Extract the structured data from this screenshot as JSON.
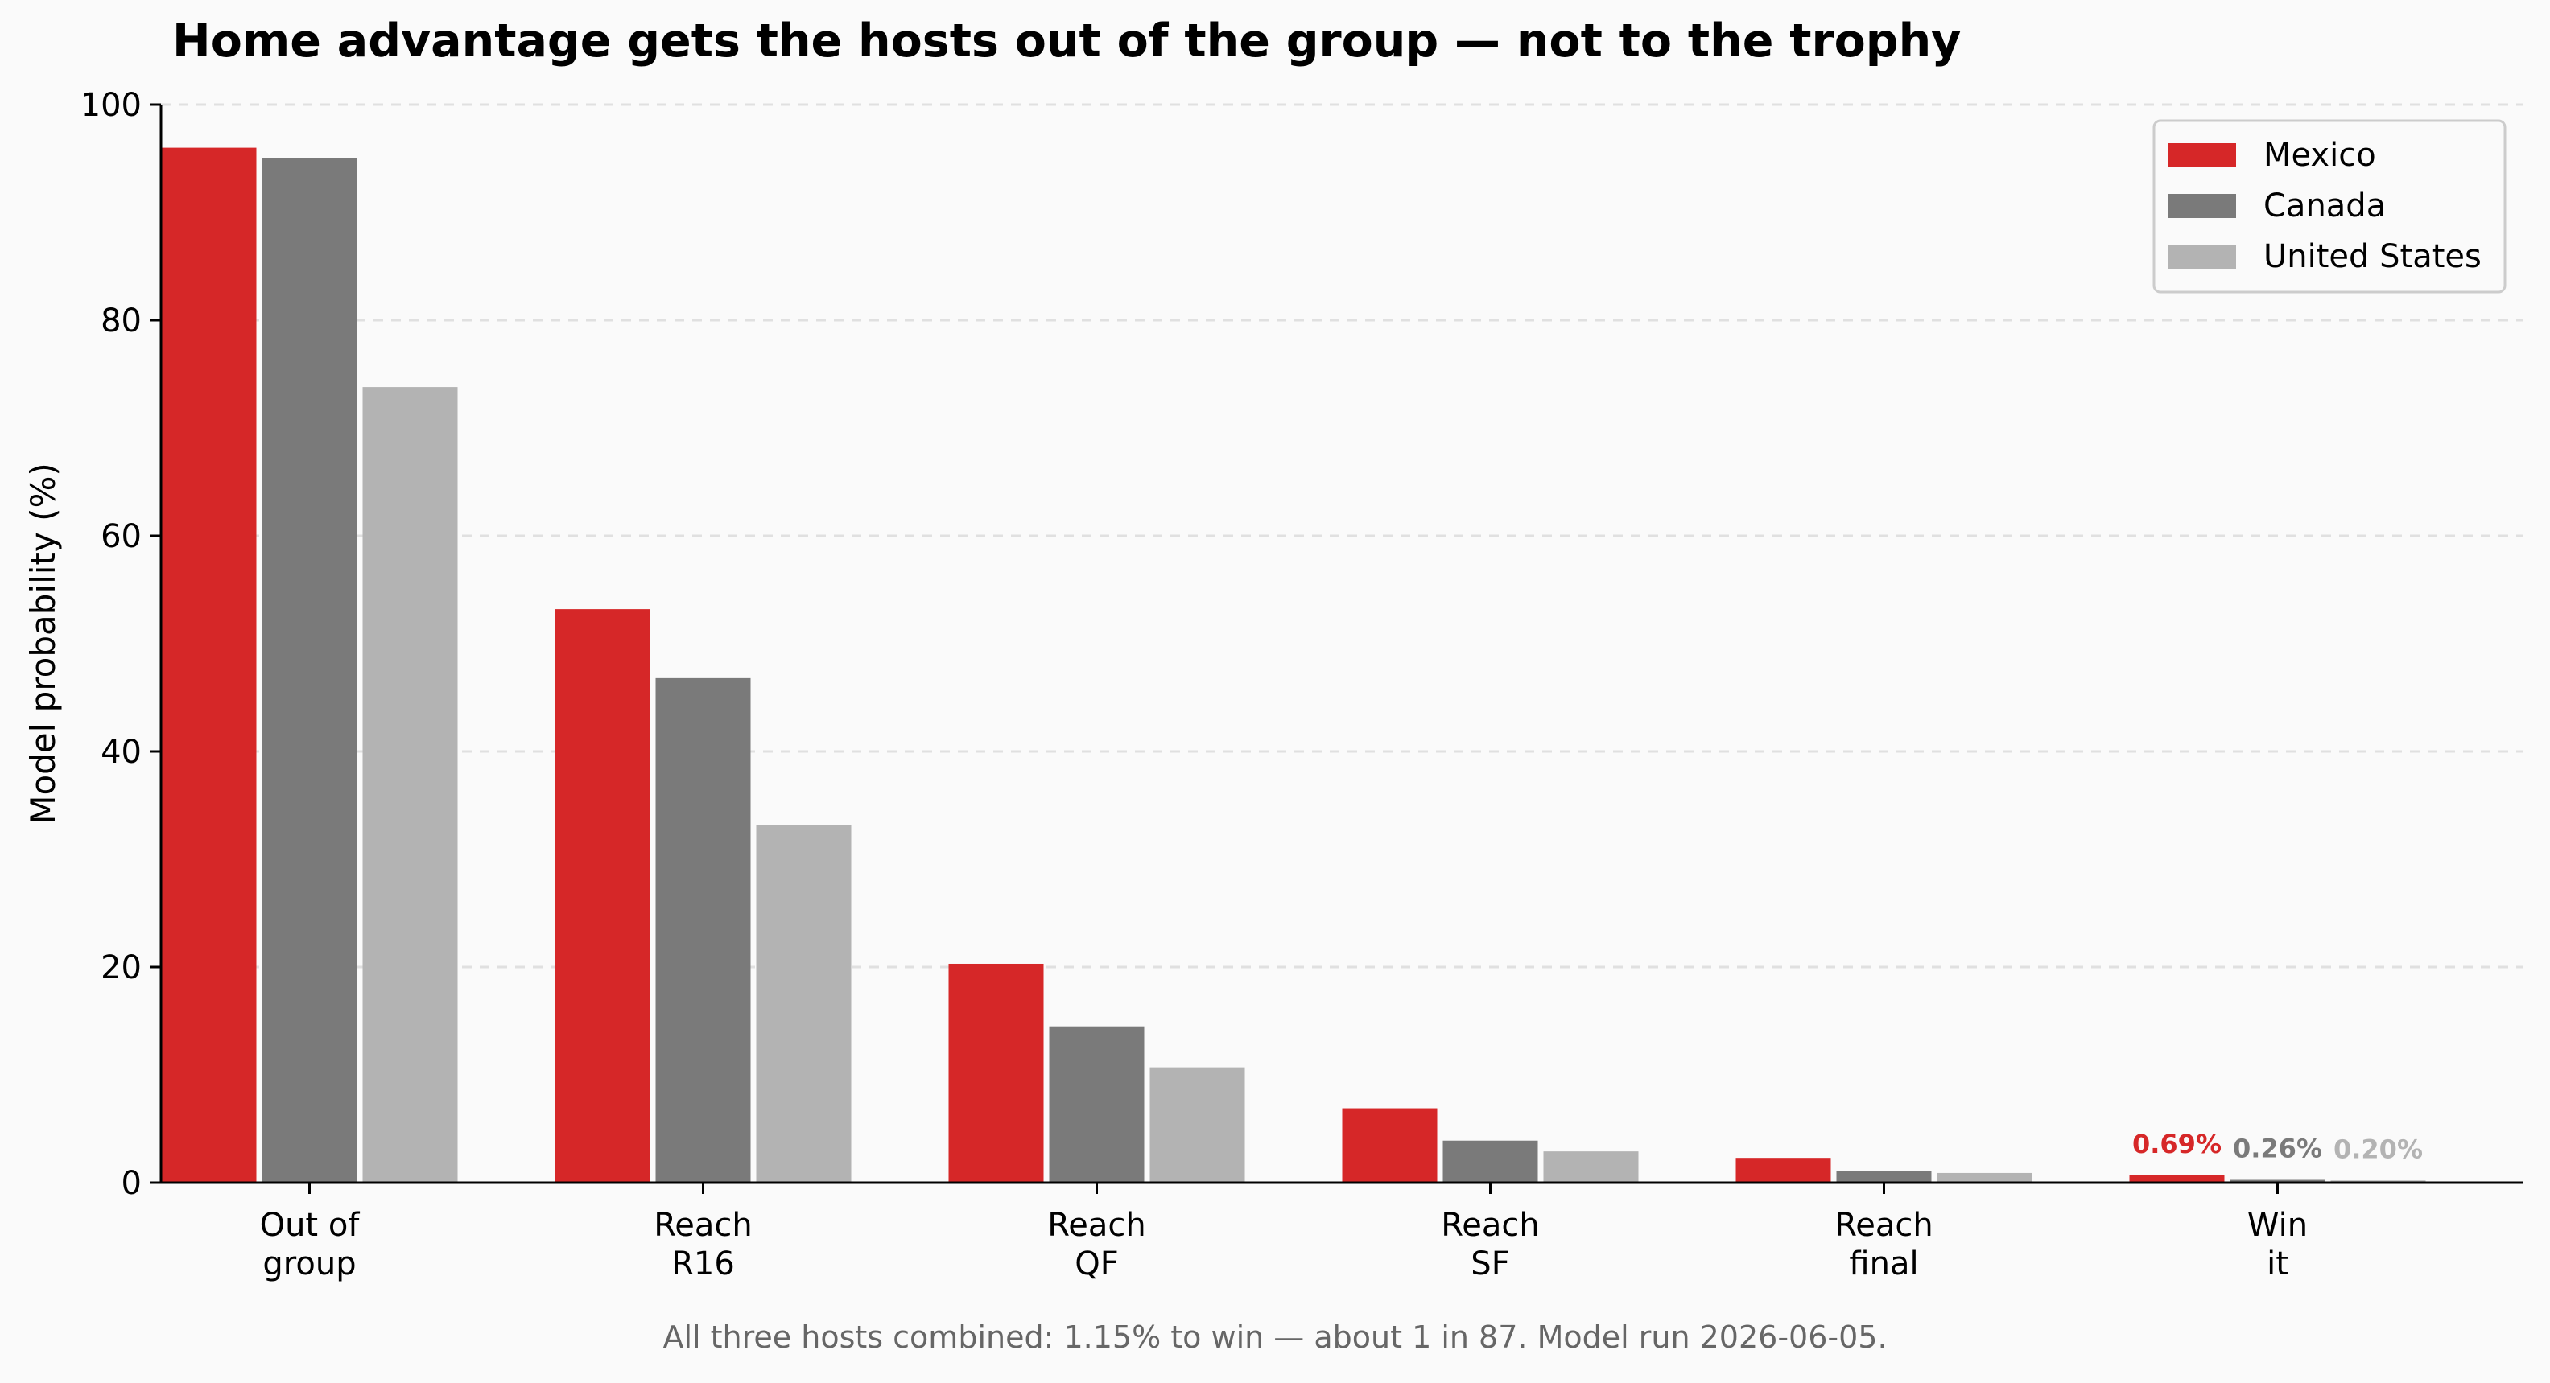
{
  "chart_data": {
    "type": "bar",
    "title": "Home advantage gets the hosts out of the group — not to the trophy",
    "ylabel": "Model probability (%)",
    "xlabel": "",
    "ylim": [
      0,
      100
    ],
    "yticks": [
      0,
      20,
      40,
      60,
      80,
      100
    ],
    "grid": true,
    "legend_position": "top-right",
    "categories": [
      "Out of\ngroup",
      "Reach\nR16",
      "Reach\nQF",
      "Reach\nSF",
      "Reach\nfinal",
      "Win\nit"
    ],
    "series": [
      {
        "name": "Mexico",
        "color": "#d62728",
        "values": [
          96.0,
          53.2,
          20.3,
          6.9,
          2.3,
          0.69
        ]
      },
      {
        "name": "Canada",
        "color": "#7a7a7a",
        "values": [
          95.0,
          46.8,
          14.5,
          3.9,
          1.1,
          0.26
        ]
      },
      {
        "name": "United States",
        "color": "#b3b3b3",
        "values": [
          73.8,
          33.2,
          10.7,
          2.9,
          0.9,
          0.2
        ]
      }
    ],
    "annotations": [
      {
        "category": "Win\nit",
        "series": "Mexico",
        "text": "0.69%"
      },
      {
        "category": "Win\nit",
        "series": "Canada",
        "text": "0.26%"
      },
      {
        "category": "Win\nit",
        "series": "United States",
        "text": "0.20%"
      }
    ],
    "footer": "All three hosts combined: 1.15% to win — about 1 in 87. Model run 2026-06-05."
  }
}
